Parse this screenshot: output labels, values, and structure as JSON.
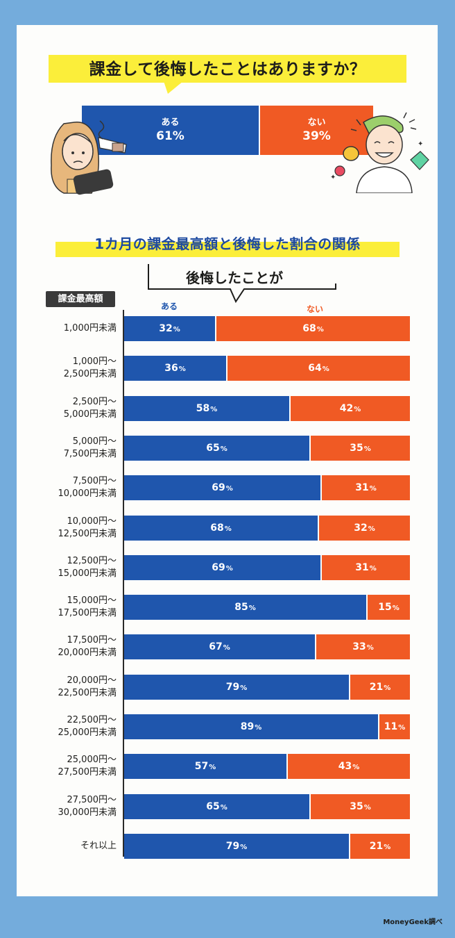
{
  "header": {
    "question": "課金して後悔したことはありますか？",
    "section_title": "1カ月の課金最高額と後悔した割合の関係",
    "callout": "後悔したことが"
  },
  "overall": {
    "yes_label": "ある",
    "yes_value": "61%",
    "yes_fraction": 0.61,
    "no_label": "ない",
    "no_value": "39%",
    "no_fraction": 0.39
  },
  "colors": {
    "yes": "#1f56ad",
    "no": "#f05a24",
    "highlight": "#fbee3a",
    "frame": "#74acdc"
  },
  "column_labels": {
    "yes": "ある",
    "no": "ない"
  },
  "badge": "課金最高額",
  "credit": "MoneyGeek調べ",
  "chart_data": {
    "type": "bar",
    "orientation": "horizontal-stacked",
    "title": "1カ月の課金最高額と後悔した割合の関係",
    "ylabel": "課金最高額",
    "xlim": [
      0,
      100
    ],
    "categories": [
      [
        "1,000円未満"
      ],
      [
        "1,000円～",
        "2,500円未満"
      ],
      [
        "2,500円～",
        "5,000円未満"
      ],
      [
        "5,000円～",
        "7,500円未満"
      ],
      [
        "7,500円～",
        "10,000円未満"
      ],
      [
        "10,000円～",
        "12,500円未満"
      ],
      [
        "12,500円～",
        "15,000円未満"
      ],
      [
        "15,000円～",
        "17,500円未満"
      ],
      [
        "17,500円～",
        "20,000円未満"
      ],
      [
        "20,000円～",
        "22,500円未満"
      ],
      [
        "22,500円～",
        "25,000円未満"
      ],
      [
        "25,000円～",
        "27,500円未満"
      ],
      [
        "27,500円～",
        "30,000円未満"
      ],
      [
        "それ以上"
      ]
    ],
    "series": [
      {
        "name": "ある",
        "values": [
          32,
          36,
          58,
          65,
          69,
          68,
          69,
          85,
          67,
          79,
          89,
          57,
          65,
          79
        ]
      },
      {
        "name": "ない",
        "values": [
          68,
          64,
          42,
          35,
          31,
          32,
          31,
          15,
          33,
          21,
          11,
          43,
          35,
          21
        ]
      }
    ]
  }
}
